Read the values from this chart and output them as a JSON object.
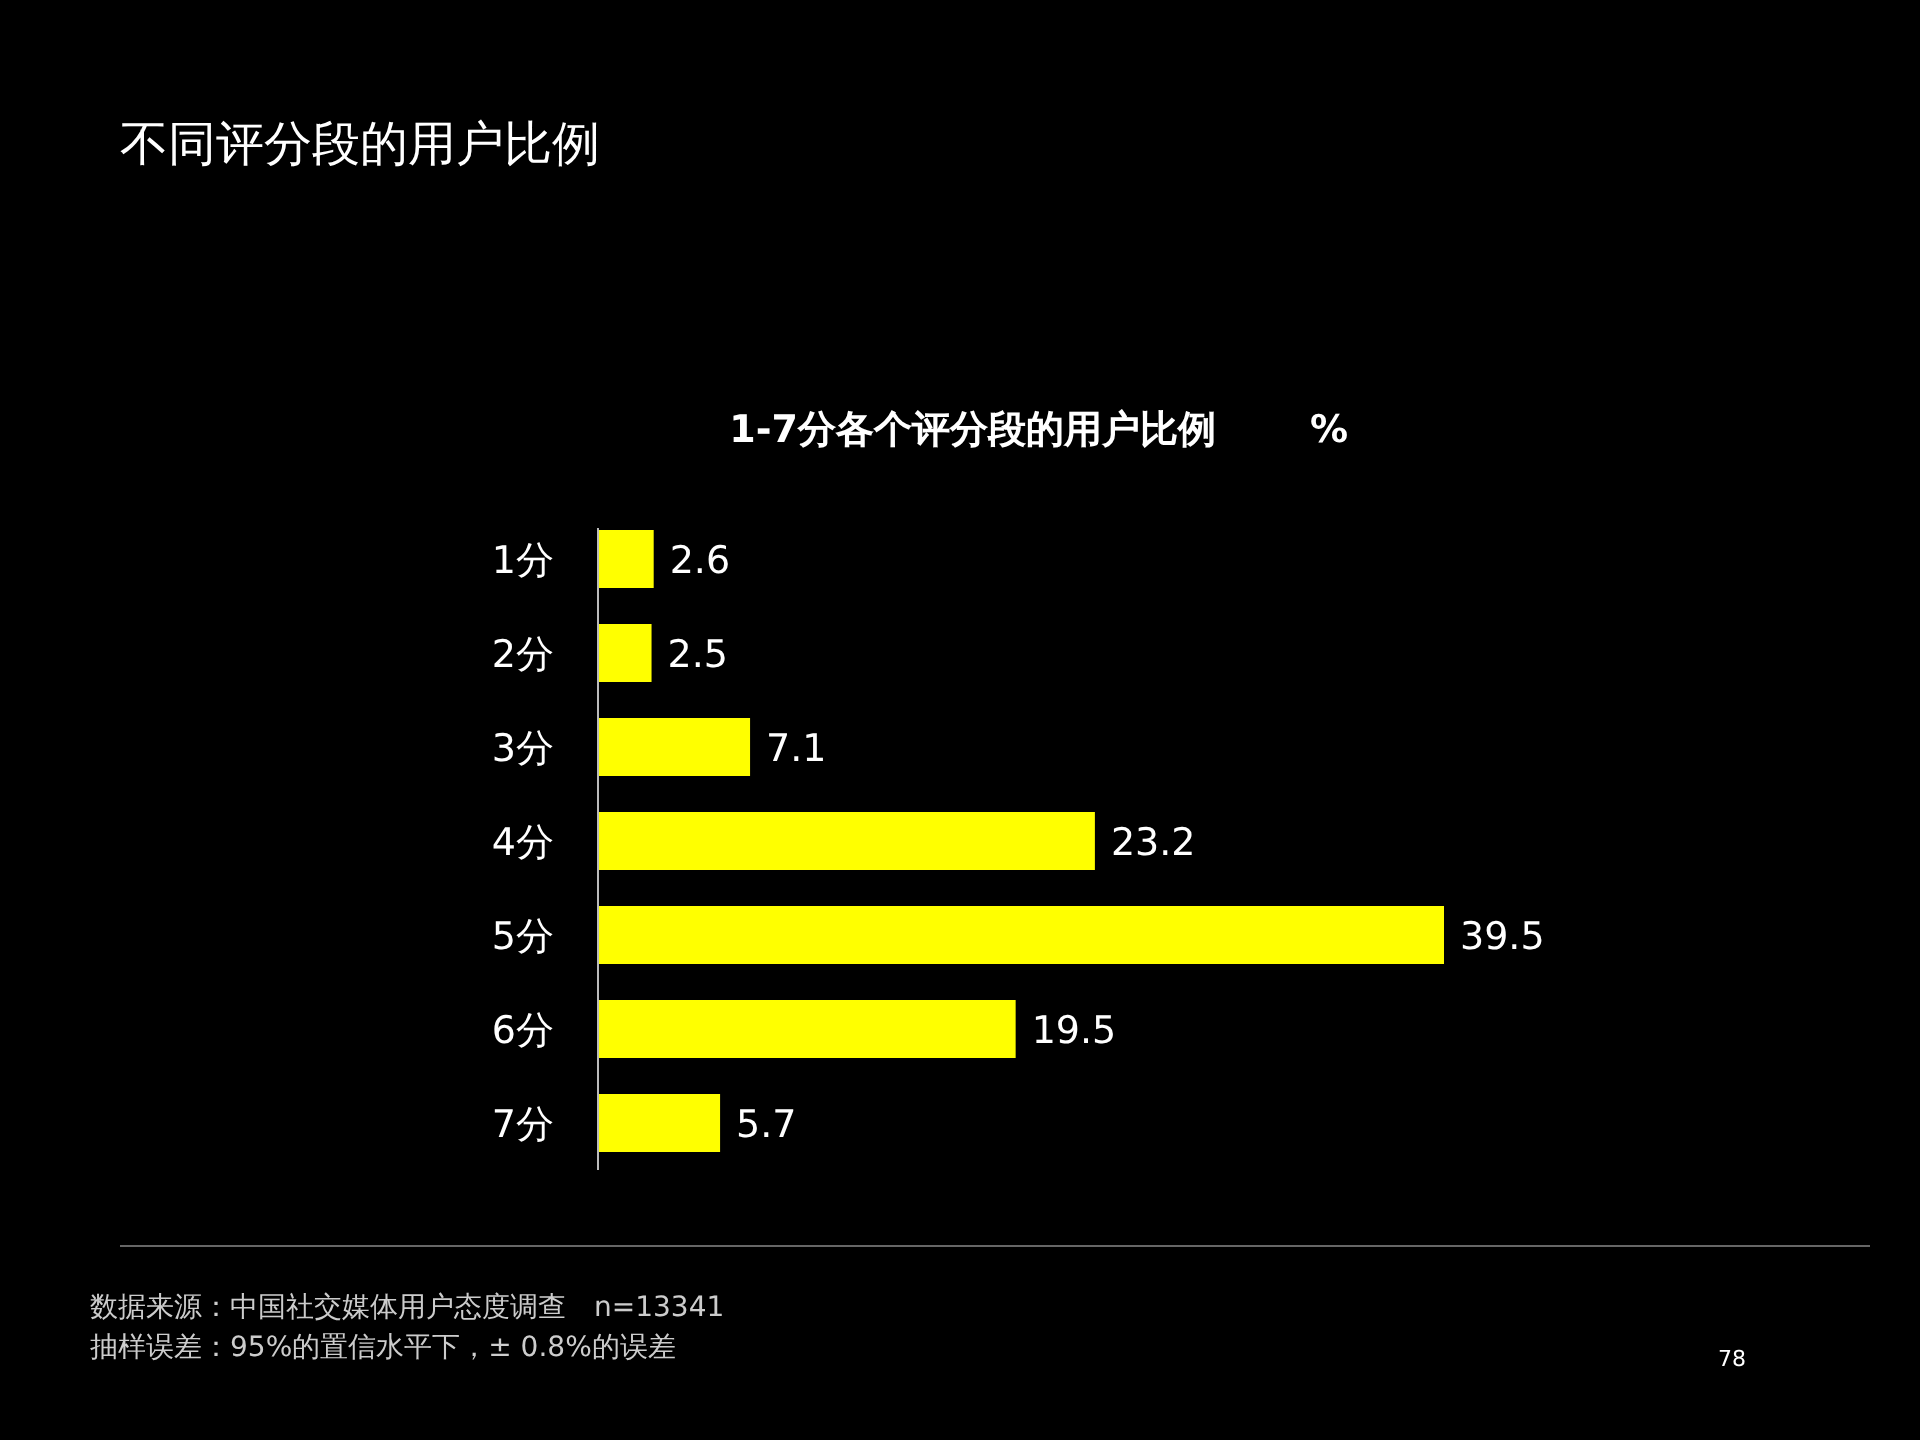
{
  "chart_data": {
    "type": "bar",
    "orientation": "horizontal",
    "title": "不同评分段的用户比例",
    "subtitle": "1-7分各个评分段的用户比例",
    "xlabel": "%",
    "categories": [
      "1分",
      "2分",
      "3分",
      "4分",
      "5分",
      "6分",
      "7分"
    ],
    "values": [
      2.6,
      2.5,
      7.1,
      23.2,
      39.5,
      19.5,
      5.7
    ],
    "color": "#ffff00",
    "data_labels": true,
    "annotations": [
      "数据来源：中国社交媒体用户态度调查　n=13341",
      "抽样误差：95%的置信水平下，± 0.8%的误差",
      "78"
    ]
  }
}
